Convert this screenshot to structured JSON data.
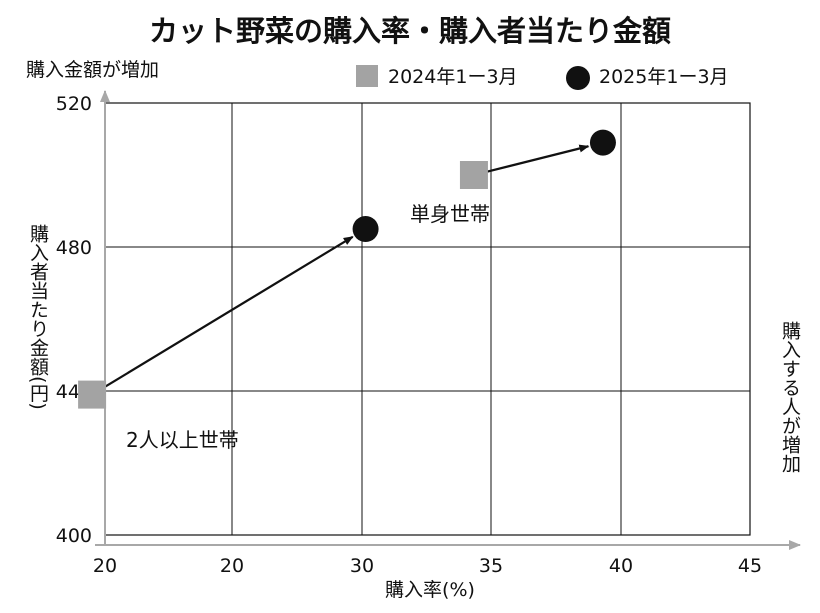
{
  "chart_data": {
    "type": "scatter",
    "title": "カット野菜の購入率・購入者当たり金額",
    "xlabel": "購入率(%)",
    "ylabel": "購入者当たり金額(円)",
    "y_direction_note": "購入金額が増加",
    "x_direction_note": "購入する人が増加",
    "x_ticks": [
      "20",
      "20",
      "30",
      "35",
      "40",
      "45"
    ],
    "y_ticks": [
      "520",
      "480",
      "440",
      "400"
    ],
    "ylim": [
      400,
      520
    ],
    "grid": true,
    "legend_position": "top",
    "series": [
      {
        "name": "2024年1ー3月",
        "marker": "square",
        "color": "#a3a3a3"
      },
      {
        "name": "2025年1ー3月",
        "marker": "circle",
        "color": "#111111"
      }
    ],
    "points": [
      {
        "group": "2人以上世帯",
        "series": "2024年1ー3月",
        "x": 19.5,
        "y": 439
      },
      {
        "group": "2人以上世帯",
        "series": "2025年1ー3月",
        "x": 30.1,
        "y": 485
      },
      {
        "group": "単身世帯",
        "series": "2024年1ー3月",
        "x": 34.3,
        "y": 500
      },
      {
        "group": "単身世帯",
        "series": "2025年1ー3月",
        "x": 39.3,
        "y": 509
      }
    ],
    "group_labels": [
      "2人以上世帯",
      "単身世帯"
    ]
  }
}
